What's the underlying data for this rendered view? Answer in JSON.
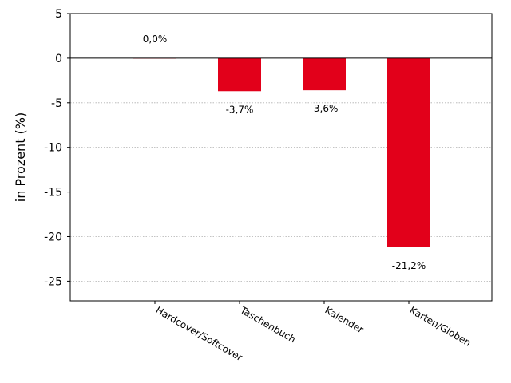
{
  "chart_data": {
    "type": "bar",
    "title": "",
    "xlabel": "",
    "ylabel": "in Prozent (%)",
    "categories": [
      "Hardcover/Softcover",
      "Taschenbuch",
      "Kalender",
      "Karten/Globen"
    ],
    "values": [
      0.0,
      -3.7,
      -3.6,
      -21.2
    ],
    "data_labels": [
      "0,0%",
      "-3,7%",
      "-3,6%",
      "-21,2%"
    ],
    "ylim": [
      -27.2,
      5
    ],
    "yticks": [
      5,
      0,
      -5,
      -10,
      -15,
      -20,
      -25
    ],
    "ytick_labels": [
      "5",
      "0",
      "-5",
      "-10",
      "-15",
      "-20",
      "-25"
    ],
    "grid": "horizontal dotted",
    "bar_color": "#e2001a",
    "zero_line": true
  }
}
